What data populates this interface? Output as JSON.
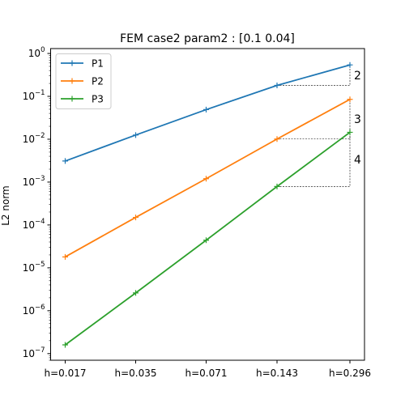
{
  "chart_data": {
    "type": "line",
    "title": "FEM case2 param2 : [0.1  0.04]",
    "xlabel": "",
    "ylabel": "L2 norm",
    "categories": [
      "h=0.017",
      "h=0.035",
      "h=0.071",
      "h=0.143",
      "h=0.296"
    ],
    "y_scale": "log",
    "ylim": [
      7e-08,
      1.3
    ],
    "y_ticks": [
      {
        "value": 1e-07,
        "base": "10",
        "exp": "−7"
      },
      {
        "value": 1e-06,
        "base": "10",
        "exp": "−6"
      },
      {
        "value": 1e-05,
        "base": "10",
        "exp": "−5"
      },
      {
        "value": 0.0001,
        "base": "10",
        "exp": "−4"
      },
      {
        "value": 0.001,
        "base": "10",
        "exp": "−3"
      },
      {
        "value": 0.01,
        "base": "10",
        "exp": "−2"
      },
      {
        "value": 0.1,
        "base": "10",
        "exp": "−1"
      },
      {
        "value": 1,
        "base": "10",
        "exp": "0"
      }
    ],
    "grid": false,
    "legend_position": "top-left",
    "series": [
      {
        "name": "P1",
        "color": "#1f77b4",
        "values": [
          0.0031,
          0.0125,
          0.049,
          0.18,
          0.54
        ]
      },
      {
        "name": "P2",
        "color": "#ff7f0e",
        "values": [
          1.8e-05,
          0.00015,
          0.0012,
          0.0101,
          0.085
        ]
      },
      {
        "name": "P3",
        "color": "#2ca02c",
        "values": [
          1.6e-07,
          2.6e-06,
          4.4e-05,
          0.00079,
          0.0145
        ]
      }
    ],
    "slope_annotations": [
      {
        "label": "2",
        "series": "P1",
        "from_index": 3,
        "to_index": 4
      },
      {
        "label": "3",
        "series": "P2",
        "from_index": 3,
        "to_index": 4
      },
      {
        "label": "4",
        "series": "P3",
        "from_index": 3,
        "to_index": 4
      }
    ]
  }
}
